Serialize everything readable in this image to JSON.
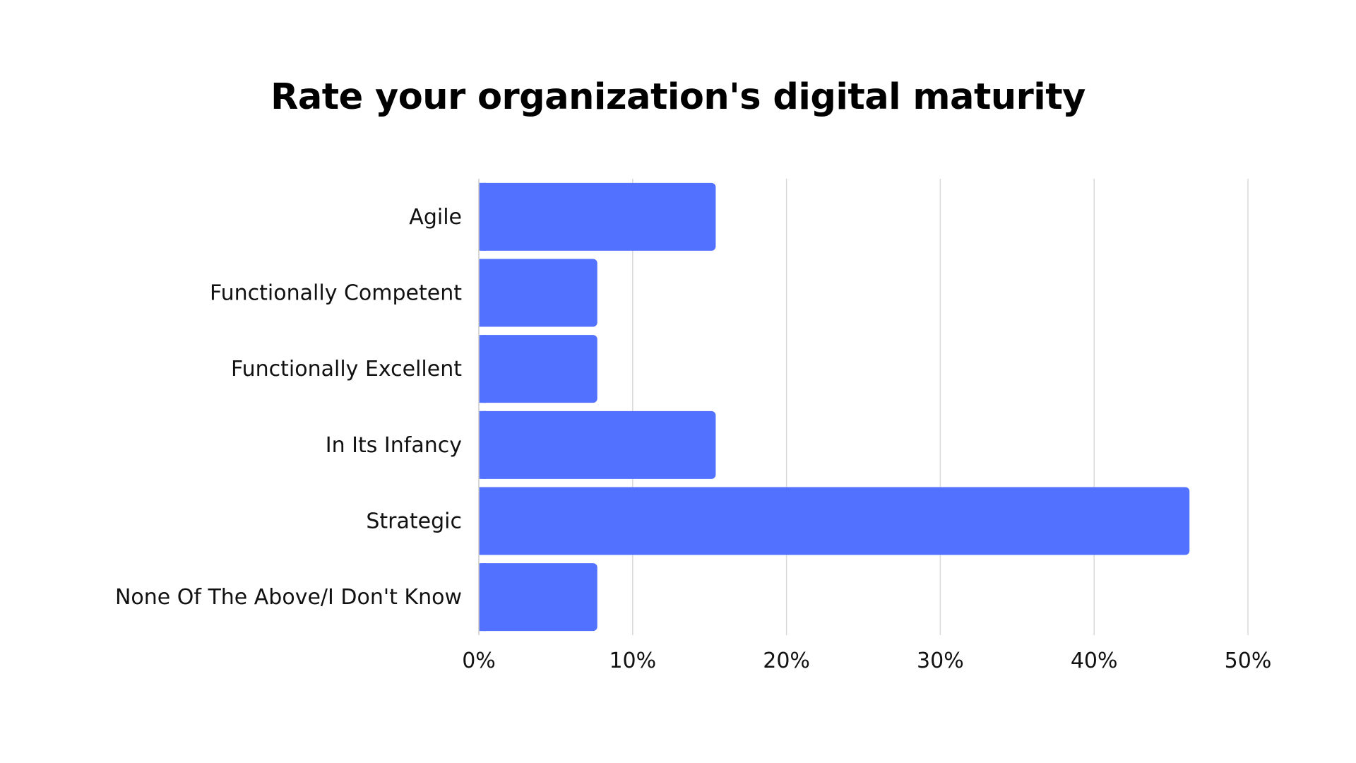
{
  "chart_data": {
    "type": "bar",
    "orientation": "horizontal",
    "title": "Rate your organization's digital maturity",
    "xlabel": "",
    "ylabel": "",
    "categories": [
      "Agile",
      "Functionally Competent",
      "Functionally Excellent",
      "In Its Infancy",
      "Strategic",
      "None Of The Above/I Don't Know"
    ],
    "values": [
      15.4,
      7.7,
      7.7,
      15.4,
      46.2,
      7.7
    ],
    "unit": "%",
    "xlim": [
      0,
      50
    ],
    "x_ticks": [
      "0%",
      "10%",
      "20%",
      "30%",
      "40%",
      "50%"
    ],
    "x_tick_values": [
      0,
      10,
      20,
      30,
      40,
      50
    ],
    "grid": "vertical",
    "legend": "none",
    "colors": {
      "bar": "#5271ff",
      "grid": "#d9d9d9",
      "axis": "#cccccc",
      "text": "#111111"
    }
  }
}
